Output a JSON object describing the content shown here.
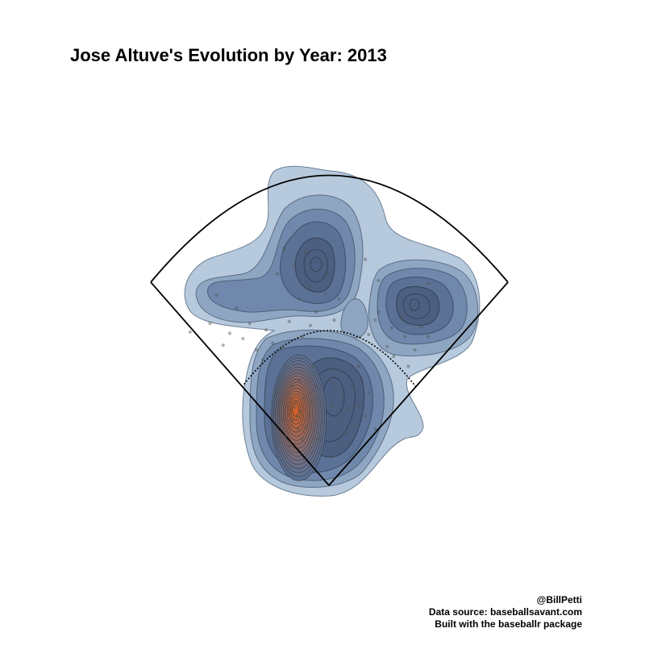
{
  "chart_data": {
    "type": "density",
    "title": "Jose Altuve's Evolution by Year: 2013",
    "xlabel": "",
    "ylabel": "",
    "grid": false,
    "legend": "none",
    "colors": {
      "low_density": "#b7c9dc",
      "mid_density": "#5c7196",
      "high_density": "#d2602a",
      "outline": "#000000",
      "points": "#555555"
    },
    "density_peaks": [
      {
        "region": "center field",
        "x": -12,
        "y": 270,
        "relative_density": 0.55
      },
      {
        "region": "right field",
        "x": 105,
        "y": 230,
        "relative_density": 0.5
      },
      {
        "region": "left field",
        "x": -135,
        "y": 215,
        "relative_density": 0.3
      },
      {
        "region": "infield, shortstop side",
        "x": -48,
        "y": 112,
        "relative_density": 1.0
      },
      {
        "region": "infield, second-base side",
        "x": 22,
        "y": 130,
        "relative_density": 0.55
      }
    ],
    "points": [
      [
        -68,
        358
      ],
      [
        -52,
        334
      ],
      [
        -78,
        320
      ],
      [
        -35,
        352
      ],
      [
        55,
        342
      ],
      [
        75,
        310
      ],
      [
        150,
        305
      ],
      [
        -170,
        288
      ],
      [
        -210,
        232
      ],
      [
        -140,
        268
      ],
      [
        -30,
        300
      ],
      [
        -5,
        290
      ],
      [
        -20,
        262
      ],
      [
        8,
        250
      ],
      [
        -28,
        242
      ],
      [
        -45,
        282
      ],
      [
        -60,
        248
      ],
      [
        -2,
        320
      ],
      [
        15,
        282
      ],
      [
        -40,
        225
      ],
      [
        -130,
        222
      ],
      [
        -110,
        205
      ],
      [
        -160,
        212
      ],
      [
        -95,
        235
      ],
      [
        -120,
        245
      ],
      [
        -85,
        215
      ],
      [
        -150,
        230
      ],
      [
        -70,
        210
      ],
      [
        -100,
        190
      ],
      [
        -180,
        245
      ],
      [
        70,
        250
      ],
      [
        95,
        238
      ],
      [
        115,
        225
      ],
      [
        130,
        205
      ],
      [
        88,
        210
      ],
      [
        110,
        255
      ],
      [
        140,
        240
      ],
      [
        60,
        228
      ],
      [
        98,
        195
      ],
      [
        120,
        180
      ],
      [
        75,
        262
      ],
      [
        150,
        225
      ],
      [
        45,
        180
      ],
      [
        -25,
        180
      ],
      [
        10,
        175
      ],
      [
        -50,
        125
      ],
      [
        -44,
        112
      ],
      [
        -56,
        98
      ],
      [
        -38,
        132
      ],
      [
        -62,
        138
      ],
      [
        -47,
        85
      ],
      [
        -70,
        100
      ],
      [
        -30,
        105
      ],
      [
        -55,
        150
      ],
      [
        -75,
        125
      ],
      [
        -40,
        70
      ],
      [
        -66,
        75
      ],
      [
        -35,
        88
      ],
      [
        -80,
        140
      ],
      [
        -60,
        60
      ],
      [
        -45,
        158
      ],
      [
        -85,
        105
      ],
      [
        -25,
        125
      ],
      [
        -52,
        118
      ],
      [
        -48,
        104
      ],
      [
        10,
        145
      ],
      [
        22,
        135
      ],
      [
        30,
        115
      ],
      [
        5,
        120
      ],
      [
        18,
        100
      ],
      [
        35,
        150
      ],
      [
        40,
        90
      ],
      [
        2,
        160
      ],
      [
        25,
        80
      ],
      [
        15,
        60
      ],
      [
        0,
        45
      ],
      [
        -15,
        70
      ],
      [
        30,
        65
      ],
      [
        45,
        120
      ],
      [
        55,
        105
      ],
      [
        60,
        140
      ],
      [
        -10,
        95
      ],
      [
        70,
        85
      ],
      [
        -20,
        150
      ],
      [
        50,
        160
      ]
    ]
  },
  "credits": {
    "line1": "@BillPetti",
    "line2": "Data source: baseballsavant.com",
    "line3": "Built with the baseballr package"
  }
}
